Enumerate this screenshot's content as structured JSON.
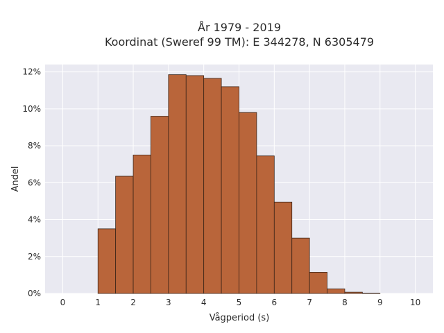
{
  "chart_data": {
    "type": "bar",
    "title": "År 1979 - 2019",
    "subtitle": "Koordinat (Sweref 99 TM): E 344278, N 6305479",
    "xlabel": "Vågperiod (s)",
    "ylabel": "Andel",
    "xlim": [
      -0.5,
      10.5
    ],
    "ylim": [
      0,
      12.4
    ],
    "x_ticks": [
      0,
      1,
      2,
      3,
      4,
      5,
      6,
      7,
      8,
      9,
      10
    ],
    "x_tick_labels": [
      "0",
      "1",
      "2",
      "3",
      "4",
      "5",
      "6",
      "7",
      "8",
      "9",
      "10"
    ],
    "y_ticks": [
      0,
      2,
      4,
      6,
      8,
      10,
      12
    ],
    "y_tick_labels": [
      "0%",
      "2%",
      "4%",
      "6%",
      "8%",
      "10%",
      "12%"
    ],
    "bin_width": 0.5,
    "bins": [
      {
        "x0": 1.0,
        "x1": 1.5,
        "value": 3.5
      },
      {
        "x0": 1.5,
        "x1": 2.0,
        "value": 6.35
      },
      {
        "x0": 2.0,
        "x1": 2.5,
        "value": 7.5
      },
      {
        "x0": 2.5,
        "x1": 3.0,
        "value": 9.6
      },
      {
        "x0": 3.0,
        "x1": 3.5,
        "value": 11.85
      },
      {
        "x0": 3.5,
        "x1": 4.0,
        "value": 11.8
      },
      {
        "x0": 4.0,
        "x1": 4.5,
        "value": 11.65
      },
      {
        "x0": 4.5,
        "x1": 5.0,
        "value": 11.2
      },
      {
        "x0": 5.0,
        "x1": 5.5,
        "value": 9.8
      },
      {
        "x0": 5.5,
        "x1": 6.0,
        "value": 7.45
      },
      {
        "x0": 6.0,
        "x1": 6.5,
        "value": 4.95
      },
      {
        "x0": 6.5,
        "x1": 7.0,
        "value": 3.0
      },
      {
        "x0": 7.0,
        "x1": 7.5,
        "value": 1.15
      },
      {
        "x0": 7.5,
        "x1": 8.0,
        "value": 0.25
      },
      {
        "x0": 8.0,
        "x1": 8.5,
        "value": 0.07
      },
      {
        "x0": 8.5,
        "x1": 9.0,
        "value": 0.02
      }
    ],
    "grid": true,
    "colors": {
      "bar_fill": "#b9653a",
      "bar_stroke": "#3a2418",
      "plot_bg": "#e9e9f1",
      "grid": "#ffffff"
    }
  }
}
